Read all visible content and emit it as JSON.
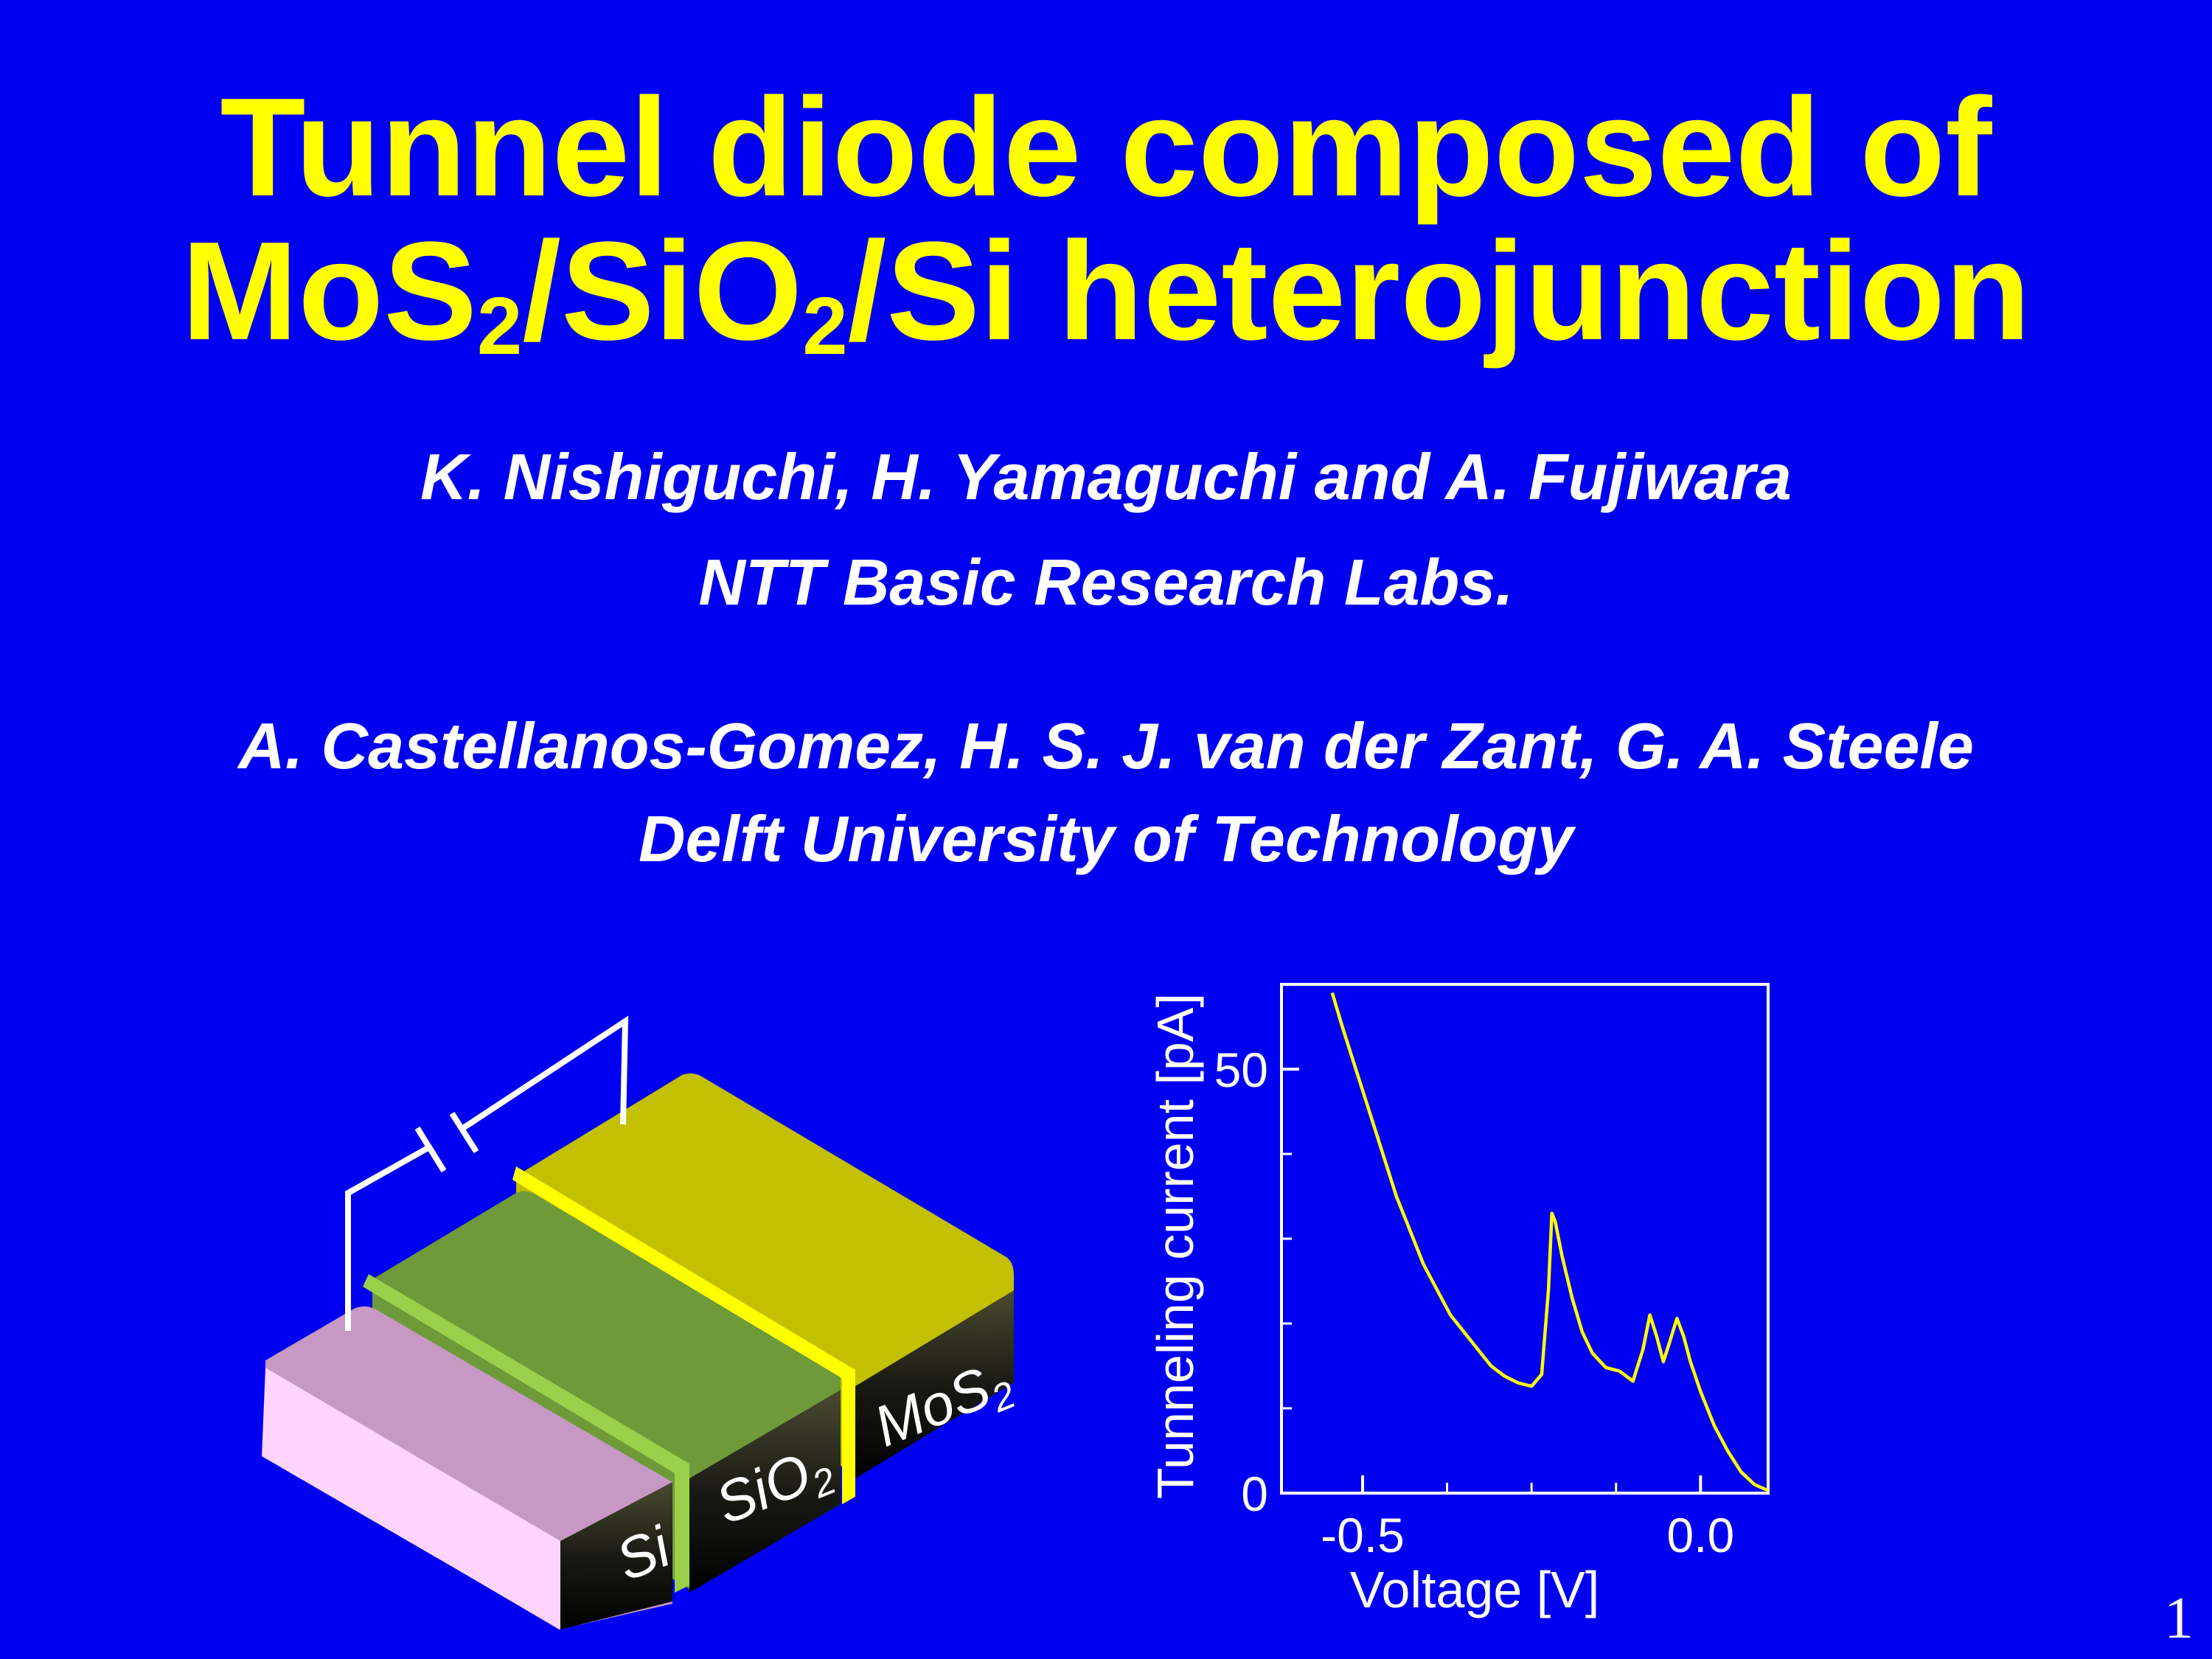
{
  "slide": {
    "title_line1": "Tunnel diode composed of",
    "title_line2": {
      "a": "MoS",
      "a_sub": "2",
      "b": "/SiO",
      "b_sub": "2",
      "c": "/Si heterojunction"
    },
    "authors_group1": "K. Nishiguchi, H. Yamaguchi and A. Fujiwara",
    "affiliation1": "NTT Basic Research Labs.",
    "authors_group2": "A. Castellanos-Gomez, H. S. J. van der Zant, G. A. Steele",
    "affiliation2": "Delft University of Technology",
    "page_number": "1"
  },
  "device": {
    "layers": [
      {
        "label": "Si",
        "color": "#ffd4ff"
      },
      {
        "label": "SiO",
        "sub": "2",
        "color": "#6e9a3a"
      },
      {
        "label": "MoS",
        "sub": "2",
        "color": "#c2c000"
      }
    ],
    "contact_color": "#ffffff"
  },
  "chart_data": {
    "type": "line",
    "xlabel": "Voltage [V]",
    "ylabel": "Tunneling current [pA]",
    "xlim": [
      -0.62,
      0.1
    ],
    "ylim": [
      0,
      60
    ],
    "xticks": [
      {
        "value": -0.5,
        "label": "-0.5"
      },
      {
        "value": 0.0,
        "label": "0.0"
      }
    ],
    "yticks": [
      {
        "value": 0,
        "label": "0"
      },
      {
        "value": 50,
        "label": "50"
      }
    ],
    "x_minor_ticks": [
      -0.375,
      -0.25,
      -0.125
    ],
    "y_minor_ticks": [
      10,
      20,
      30,
      40
    ],
    "line_color": "#ffff00",
    "frame_color": "#ffffff",
    "series": [
      {
        "x": [
          -0.545,
          -0.53,
          -0.51,
          -0.49,
          -0.47,
          -0.45,
          -0.43,
          -0.41,
          -0.39,
          -0.37,
          -0.35,
          -0.33,
          -0.31,
          -0.29,
          -0.27,
          -0.25,
          -0.235,
          -0.225,
          -0.22,
          -0.215,
          -0.205,
          -0.19,
          -0.175,
          -0.16,
          -0.14,
          -0.12,
          -0.1,
          -0.085,
          -0.075,
          -0.065,
          -0.055,
          -0.045,
          -0.035,
          -0.025,
          -0.015,
          0.0,
          0.02,
          0.04,
          0.06,
          0.08,
          0.1
        ],
        "y": [
          59,
          55,
          50,
          45,
          40,
          35,
          31,
          27,
          24,
          21,
          19,
          17,
          15,
          13.8,
          13,
          12.6,
          14,
          24,
          33,
          32,
          28,
          23,
          19,
          16.5,
          14.8,
          14.4,
          13.2,
          17,
          21,
          18.5,
          15.5,
          18,
          20.6,
          18.5,
          15.5,
          12,
          8,
          5,
          2.5,
          1,
          0.3
        ]
      }
    ]
  }
}
